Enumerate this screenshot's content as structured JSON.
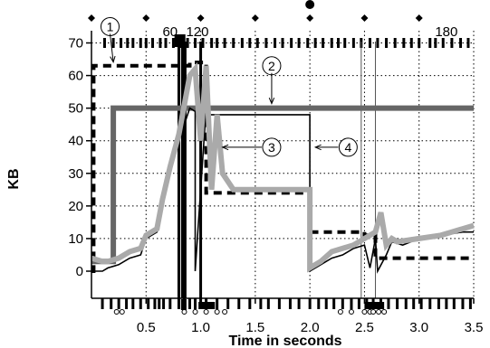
{
  "chart_data": {
    "type": "line",
    "title": "",
    "xlabel": "Time in seconds",
    "ylabel": "KB",
    "xlim": [
      0,
      3.5
    ],
    "ylim": [
      -3,
      72
    ],
    "x_ticks": [
      0.5,
      1.0,
      1.5,
      2.0,
      2.5,
      3.0,
      3.5
    ],
    "x_tick_labels": [
      "0.5",
      "1.0",
      "1.5",
      "2.0",
      "2.5",
      "3.0",
      "3.5"
    ],
    "y_ticks": [
      0,
      10,
      20,
      30,
      40,
      50,
      60,
      70
    ],
    "y_tick_labels": [
      "0",
      "10",
      "20",
      "30",
      "40",
      "50",
      "60",
      "70"
    ],
    "grid": true,
    "series": [
      {
        "color": "#666666",
        "style": "thick-solid",
        "x": [
          0,
          0.2,
          0.2,
          3.5
        ],
        "y": [
          3,
          3,
          50,
          50
        ]
      },
      {
        "color": "#000000",
        "style": "dashed",
        "x": [
          0,
          0.02,
          0.02,
          0.9,
          0.9,
          1.05,
          1.05,
          2.0,
          2.0,
          2.5,
          2.5,
          2.6,
          2.6,
          3.5
        ],
        "y": [
          0,
          0,
          63,
          63,
          64,
          64,
          24,
          24,
          12,
          12,
          11,
          11,
          4,
          4
        ]
      },
      {
        "color": "#000000",
        "style": "thin-solid",
        "x": [
          0,
          0.1,
          0.15,
          0.25,
          0.35,
          0.45,
          0.5,
          0.6,
          0.65,
          0.72,
          0.8,
          0.88,
          0.9,
          0.95,
          0.95,
          1.05,
          1.05,
          2.0,
          2.0,
          2.1,
          2.2,
          2.3,
          2.4,
          2.5,
          2.55,
          2.6,
          2.62,
          2.7,
          2.75,
          2.85,
          3.0,
          3.2,
          3.4,
          3.5
        ],
        "y": [
          0,
          0,
          1,
          2,
          4,
          5,
          10,
          12,
          20,
          30,
          40,
          48,
          50,
          49,
          0,
          50,
          48,
          48,
          0,
          2,
          4,
          5,
          7,
          8,
          1,
          10,
          0,
          5,
          9,
          8,
          10,
          11,
          12,
          12
        ]
      },
      {
        "color": "#aaaaaa",
        "style": "thick-solid",
        "x": [
          0,
          0.1,
          0.15,
          0.25,
          0.35,
          0.45,
          0.5,
          0.6,
          0.65,
          0.72,
          0.8,
          0.9,
          0.95,
          1.0,
          1.05,
          1.1,
          1.15,
          1.2,
          1.3,
          2.0,
          2.0,
          2.1,
          2.2,
          2.3,
          2.4,
          2.5,
          2.6,
          2.65,
          2.7,
          2.75,
          2.8,
          3.0,
          3.2,
          3.4,
          3.5
        ],
        "y": [
          4,
          3,
          3,
          4,
          6,
          7,
          11,
          13,
          22,
          32,
          42,
          60,
          62,
          40,
          63,
          25,
          48,
          30,
          25,
          25,
          1,
          3,
          6,
          7,
          8,
          10,
          12,
          18,
          8,
          10,
          9,
          10,
          11,
          13,
          14
        ]
      }
    ],
    "vertical_markers": [
      {
        "x": 0.8,
        "style": "thick-black"
      },
      {
        "x": 1.0,
        "style": "thick-black"
      },
      {
        "x": 2.47,
        "style": "thin-gray"
      },
      {
        "x": 2.6,
        "style": "thin-gray"
      }
    ],
    "top_labels": [
      {
        "text": "60",
        "x": 0.72
      },
      {
        "text": "120",
        "x": 0.97
      },
      {
        "text": "180",
        "x": 3.25
      }
    ],
    "annotations": [
      {
        "text": "1",
        "x": 0.17,
        "y": 75
      },
      {
        "text": "2",
        "x": 1.65,
        "y": 63
      },
      {
        "text": "3",
        "x": 1.65,
        "y": 38
      },
      {
        "text": "4",
        "x": 2.35,
        "y": 38
      }
    ],
    "diamond_markers_x": [
      0.0,
      0.5,
      1.0,
      1.5,
      2.0,
      2.5,
      3.0
    ],
    "circle_marker_x": 2.0,
    "top_tick_x": [
      0.12,
      0.2,
      0.27,
      0.33,
      0.38,
      0.45,
      0.5,
      0.56,
      0.63,
      0.68,
      0.75,
      0.82,
      0.88,
      0.95,
      1.02,
      1.1,
      1.15,
      1.22,
      1.3,
      1.38,
      1.45,
      1.52,
      1.6,
      1.68,
      1.75,
      1.83,
      1.9,
      1.98,
      2.05,
      2.12,
      2.2,
      2.26,
      2.32,
      2.4,
      2.47,
      2.55,
      2.62,
      2.7,
      2.78,
      2.86,
      2.93,
      3.0,
      3.1,
      3.15,
      3.22,
      3.3,
      3.38,
      3.45
    ],
    "bottom_tick_x": [
      0.1,
      0.18,
      0.25,
      0.32,
      0.38,
      0.45,
      0.52,
      0.58,
      0.62,
      0.66,
      0.72,
      0.8,
      0.85,
      0.9,
      0.95,
      1.0,
      1.05,
      1.15,
      1.25,
      1.35,
      1.45,
      1.55,
      1.62,
      1.72,
      1.82,
      1.9,
      2.0,
      2.08,
      2.15,
      2.22,
      2.3,
      2.38,
      2.45,
      2.52,
      2.58,
      2.65,
      2.72,
      2.8,
      2.88,
      2.95,
      3.02,
      3.1,
      3.18,
      3.25,
      3.32,
      3.4,
      3.47
    ],
    "bottom_circle_x": [
      0.23,
      0.28,
      0.85,
      0.95,
      1.05,
      1.15,
      1.22,
      2.28,
      2.38,
      2.5,
      2.55,
      2.58,
      2.63,
      2.68
    ]
  }
}
